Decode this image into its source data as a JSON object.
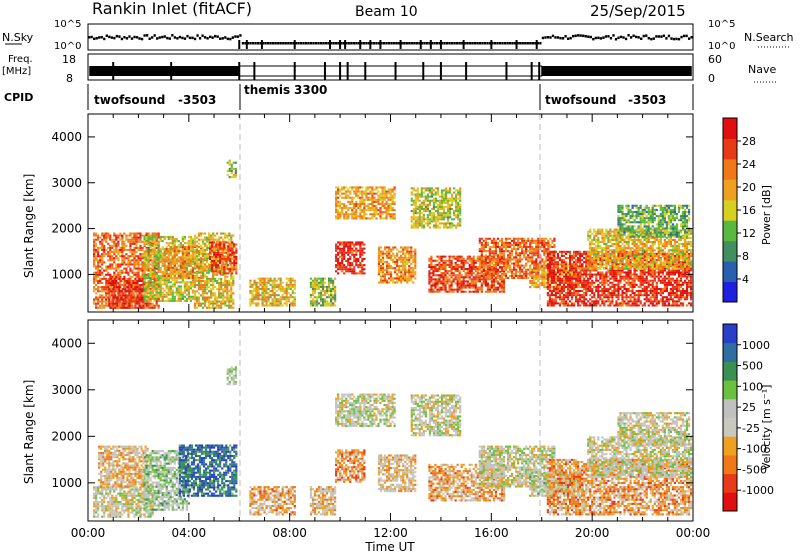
{
  "header": {
    "title": "Rankin Inlet (fitACF)",
    "beam": "Beam 10",
    "date": "25/Sep/2015"
  },
  "aux": {
    "nsky_label": "N.Sky",
    "nsky_ticks": [
      "10^5",
      "10^0"
    ],
    "nsearch_label": "N.Search",
    "nsearch_ticks": [
      "10^5",
      "10^0"
    ],
    "freq_label_1": "Freq.",
    "freq_label_2": "[MHz]",
    "freq_ticks": [
      "18",
      "8"
    ],
    "nave_label": "Nave",
    "nave_ticks": [
      "60",
      "0"
    ],
    "cpid_label": "CPID",
    "cpid_segments": [
      {
        "name": "twofsound",
        "id": "-3503"
      },
      {
        "name": "themis",
        "id": "3300"
      },
      {
        "name": "twofsound",
        "id": "-3503"
      }
    ]
  },
  "x_axis": {
    "label": "Time UT",
    "ticks": [
      "00:00",
      "04:00",
      "08:00",
      "12:00",
      "16:00",
      "20:00",
      "00:00"
    ]
  },
  "colors": {
    "power_scale": [
      "#2020e0",
      "#2a5fb0",
      "#3f8f5f",
      "#58b840",
      "#d8d020",
      "#f0a020",
      "#f07818",
      "#e83a18",
      "#e01010"
    ],
    "velocity_scale": [
      "#2a3fc8",
      "#2f6f9f",
      "#3a9050",
      "#6bc040",
      "#c0c0c0",
      "#c8c8c0",
      "#f0a020",
      "#f07818",
      "#e83a18",
      "#e01010"
    ]
  },
  "chart_data": [
    {
      "type": "heatmap",
      "title": "Power",
      "xlabel": "Time UT",
      "ylabel": "Slant Range [km]",
      "xlim": [
        0,
        24
      ],
      "ylim": [
        180,
        4500
      ],
      "yticks": [
        "1000",
        "2000",
        "3000",
        "4000"
      ],
      "colorbar_label": "Power [dB]",
      "colorbar_ticks": [
        "4",
        "8",
        "12",
        "16",
        "20",
        "24",
        "28"
      ],
      "patches": [
        {
          "t": [
            0.2,
            2.8
          ],
          "r": [
            250,
            1900
          ],
          "v": 24
        },
        {
          "t": [
            0.8,
            2.2
          ],
          "r": [
            250,
            900
          ],
          "v": 28
        },
        {
          "t": [
            2.2,
            4.2
          ],
          "r": [
            400,
            1800
          ],
          "v": 16
        },
        {
          "t": [
            3.0,
            4.6
          ],
          "r": [
            900,
            1600
          ],
          "v": 22
        },
        {
          "t": [
            4.2,
            5.8
          ],
          "r": [
            250,
            1900
          ],
          "v": 18
        },
        {
          "t": [
            4.8,
            5.9
          ],
          "r": [
            1000,
            1700
          ],
          "v": 26
        },
        {
          "t": [
            5.5,
            5.9
          ],
          "r": [
            3100,
            3500
          ],
          "v": 14
        },
        {
          "t": [
            6.4,
            8.2
          ],
          "r": [
            300,
            900
          ],
          "v": 18
        },
        {
          "t": [
            8.8,
            9.8
          ],
          "r": [
            300,
            900
          ],
          "v": 14
        },
        {
          "t": [
            9.8,
            12.2
          ],
          "r": [
            2200,
            2900
          ],
          "v": 20
        },
        {
          "t": [
            9.8,
            11.0
          ],
          "r": [
            1000,
            1700
          ],
          "v": 28
        },
        {
          "t": [
            11.5,
            13.0
          ],
          "r": [
            800,
            1600
          ],
          "v": 22
        },
        {
          "t": [
            12.8,
            14.8
          ],
          "r": [
            2000,
            2900
          ],
          "v": 16
        },
        {
          "t": [
            13.5,
            16.5
          ],
          "r": [
            600,
            1400
          ],
          "v": 26
        },
        {
          "t": [
            15.5,
            18.5
          ],
          "r": [
            900,
            1800
          ],
          "v": 24
        },
        {
          "t": [
            17.5,
            19.6
          ],
          "r": [
            700,
            1200
          ],
          "v": 20
        },
        {
          "t": [
            18.2,
            23.9
          ],
          "r": [
            300,
            1500
          ],
          "v": 28
        },
        {
          "t": [
            19.8,
            23.9
          ],
          "r": [
            1100,
            2000
          ],
          "v": 18
        },
        {
          "t": [
            21.0,
            23.8
          ],
          "r": [
            1800,
            2500
          ],
          "v": 12
        }
      ]
    },
    {
      "type": "heatmap",
      "title": "Velocity",
      "xlabel": "Time UT",
      "ylabel": "Slant Range [km]",
      "xlim": [
        0,
        24
      ],
      "ylim": [
        180,
        4500
      ],
      "yticks": [
        "1000",
        "2000",
        "3000",
        "4000"
      ],
      "colorbar_label": "Velocity [m s⁻¹]",
      "colorbar_ticks": [
        "1000",
        "500",
        "100",
        "25",
        "-25",
        "-100",
        "-500",
        "-1000"
      ],
      "patches": [
        {
          "t": [
            0.2,
            2.6
          ],
          "r": [
            250,
            900
          ],
          "v": 0
        },
        {
          "t": [
            0.4,
            2.4
          ],
          "r": [
            900,
            1800
          ],
          "v": -200
        },
        {
          "t": [
            2.2,
            4.0
          ],
          "r": [
            400,
            1700
          ],
          "v": 150
        },
        {
          "t": [
            3.6,
            5.9
          ],
          "r": [
            700,
            1800
          ],
          "v": 700
        },
        {
          "t": [
            5.5,
            5.9
          ],
          "r": [
            3100,
            3500
          ],
          "v": 80
        },
        {
          "t": [
            6.4,
            8.2
          ],
          "r": [
            300,
            900
          ],
          "v": -300
        },
        {
          "t": [
            8.8,
            9.8
          ],
          "r": [
            300,
            900
          ],
          "v": -200
        },
        {
          "t": [
            9.8,
            12.2
          ],
          "r": [
            2200,
            2900
          ],
          "v": 0
        },
        {
          "t": [
            9.8,
            11.0
          ],
          "r": [
            1000,
            1700
          ],
          "v": -400
        },
        {
          "t": [
            11.5,
            13.0
          ],
          "r": [
            800,
            1600
          ],
          "v": -150
        },
        {
          "t": [
            12.8,
            14.8
          ],
          "r": [
            2000,
            2900
          ],
          "v": 0
        },
        {
          "t": [
            13.5,
            16.5
          ],
          "r": [
            600,
            1400
          ],
          "v": -300
        },
        {
          "t": [
            15.5,
            18.5
          ],
          "r": [
            900,
            1800
          ],
          "v": 0
        },
        {
          "t": [
            17.5,
            19.6
          ],
          "r": [
            700,
            1200
          ],
          "v": 80
        },
        {
          "t": [
            18.2,
            23.9
          ],
          "r": [
            300,
            1500
          ],
          "v": -350
        },
        {
          "t": [
            19.8,
            23.9
          ],
          "r": [
            1100,
            2000
          ],
          "v": 0
        },
        {
          "t": [
            21.0,
            23.8
          ],
          "r": [
            1800,
            2500
          ],
          "v": 0
        }
      ]
    }
  ]
}
